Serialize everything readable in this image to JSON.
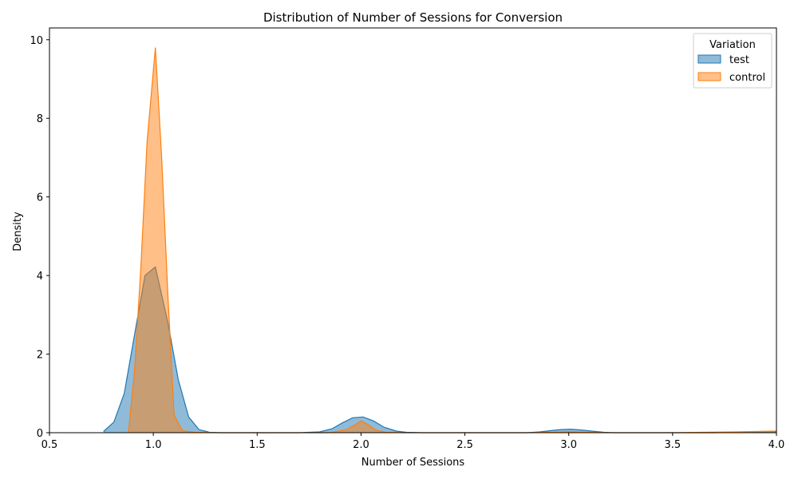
{
  "chart_data": {
    "type": "area",
    "title": "Distribution of Number of Sessions for Conversion",
    "xlabel": "Number of Sessions",
    "ylabel": "Density",
    "xlim": [
      0.5,
      4.0
    ],
    "ylim": [
      0,
      10.3
    ],
    "xticks": [
      "0.5",
      "1.0",
      "1.5",
      "2.0",
      "2.5",
      "3.0",
      "3.5",
      "4.0"
    ],
    "yticks": [
      "0",
      "2",
      "4",
      "6",
      "8",
      "10"
    ],
    "grid": false,
    "legend": {
      "title": "Variation",
      "placement": "top-right"
    },
    "series": [
      {
        "name": "test",
        "color": "#1f77b4",
        "fill": "#8cb8da",
        "x": [
          0.76,
          0.81,
          0.86,
          0.91,
          0.96,
          1.01,
          1.07,
          1.12,
          1.17,
          1.22,
          1.27,
          1.32,
          1.4,
          1.5,
          1.6,
          1.7,
          1.8,
          1.86,
          1.91,
          1.96,
          2.01,
          2.06,
          2.11,
          2.17,
          2.22,
          2.3,
          2.4,
          2.5,
          2.6,
          2.7,
          2.8,
          2.86,
          2.91,
          2.96,
          3.01,
          3.06,
          3.11,
          3.17,
          3.22,
          3.3,
          3.5,
          3.7,
          3.9,
          4.0
        ],
        "y": [
          0.03,
          0.27,
          1.0,
          2.5,
          4.0,
          4.22,
          2.8,
          1.35,
          0.4,
          0.08,
          0.01,
          0.0,
          0.0,
          0.0,
          0.0,
          0.0,
          0.02,
          0.1,
          0.25,
          0.38,
          0.4,
          0.3,
          0.14,
          0.04,
          0.01,
          0.0,
          0.0,
          0.0,
          0.0,
          0.0,
          0.0,
          0.02,
          0.05,
          0.08,
          0.09,
          0.07,
          0.04,
          0.01,
          0.0,
          0.0,
          0.0,
          0.0,
          0.02,
          0.03
        ]
      },
      {
        "name": "control",
        "color": "#ff7f0e",
        "fill": "#ffbf86",
        "x": [
          0.88,
          0.91,
          0.94,
          0.97,
          1.0,
          1.01,
          1.04,
          1.07,
          1.1,
          1.14,
          1.2,
          1.3,
          1.5,
          1.7,
          1.85,
          1.93,
          1.97,
          2.0,
          2.03,
          2.07,
          2.12,
          2.2,
          2.5,
          2.8,
          2.93,
          3.0,
          3.07,
          3.2,
          3.5,
          3.8,
          4.0
        ],
        "y": [
          0.0,
          1.6,
          4.2,
          7.4,
          9.2,
          9.8,
          7.0,
          3.5,
          0.45,
          0.05,
          0.01,
          0.0,
          0.0,
          0.0,
          0.0,
          0.08,
          0.2,
          0.3,
          0.22,
          0.07,
          0.01,
          0.0,
          0.0,
          0.0,
          0.01,
          0.03,
          0.01,
          0.0,
          0.0,
          0.02,
          0.04
        ]
      }
    ]
  }
}
